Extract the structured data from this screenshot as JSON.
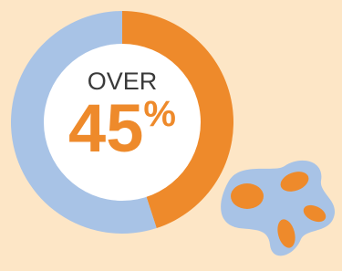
{
  "chart_data": {
    "type": "pie",
    "categories": [
      null,
      null
    ],
    "values": [
      45,
      55
    ],
    "value_labels": [
      "45%",
      null
    ],
    "colors": [
      "#ee8a2b",
      "#a8c3e6"
    ],
    "center_title": "OVER"
  }
}
